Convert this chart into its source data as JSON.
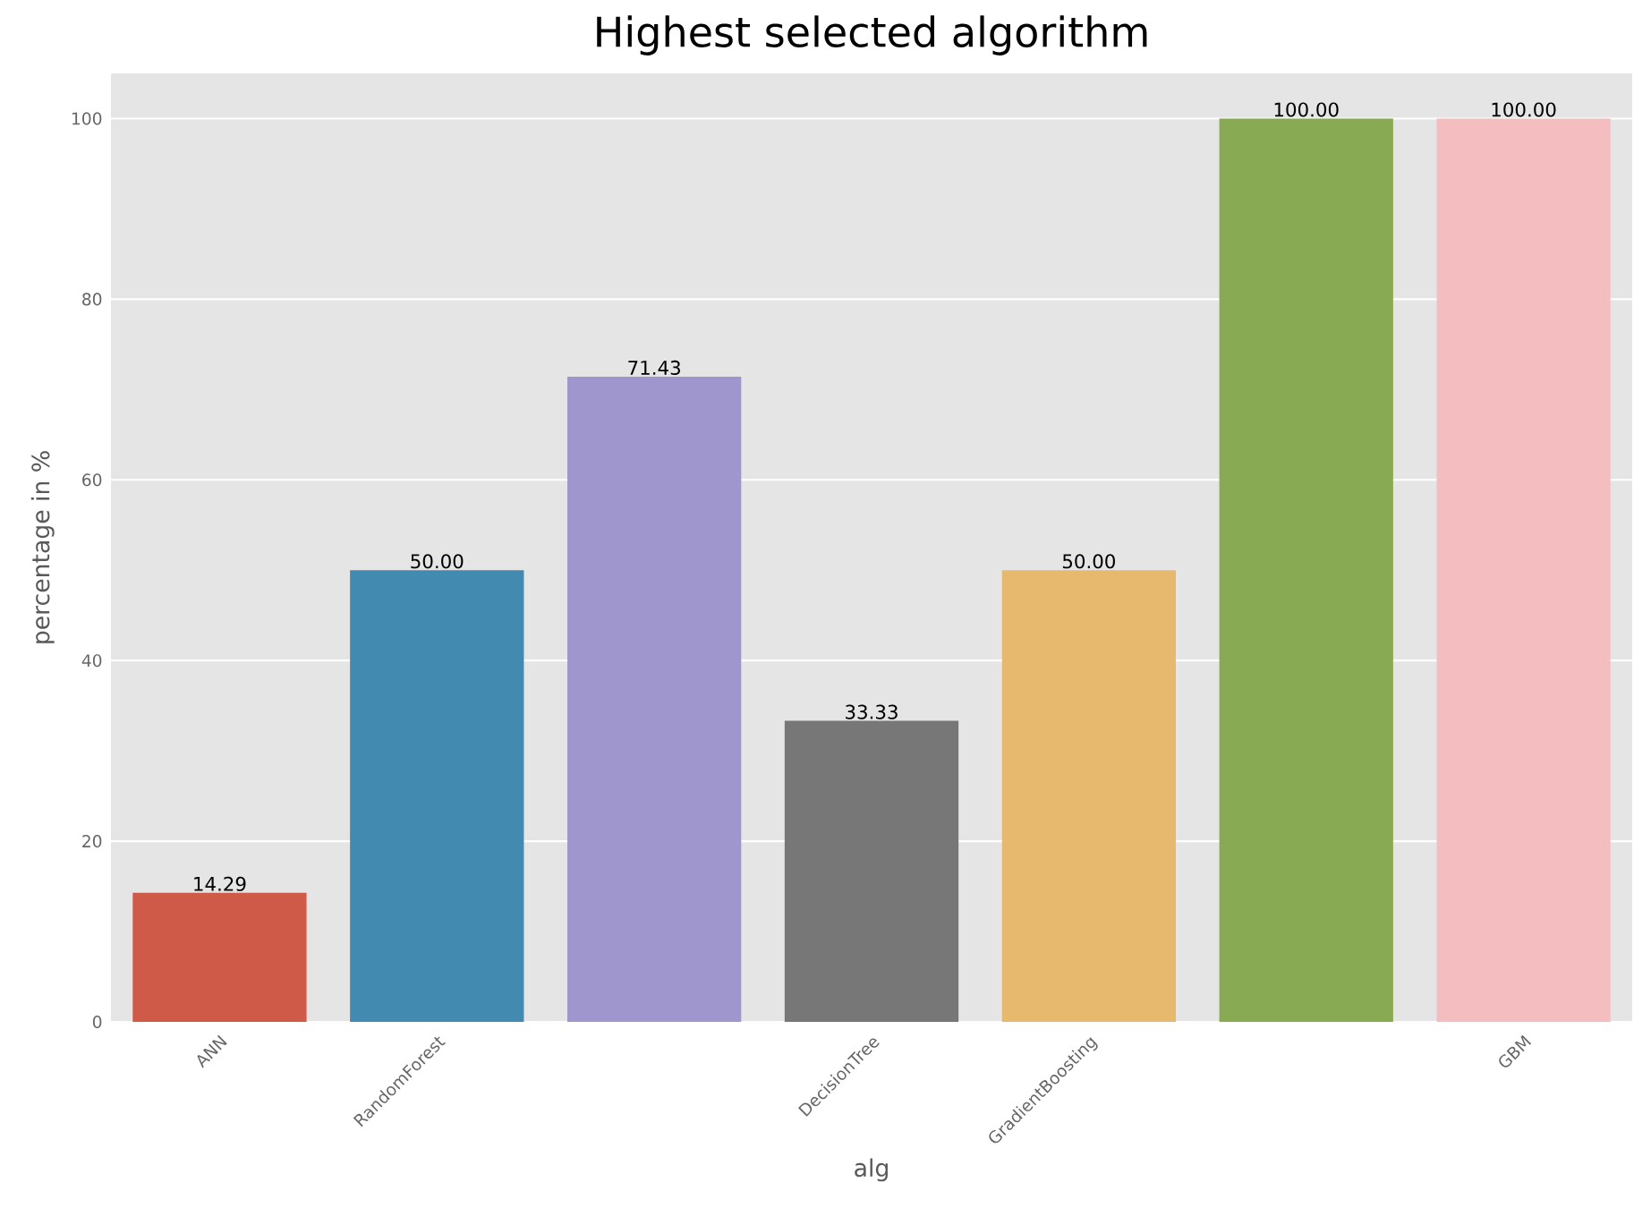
{
  "chart_data": {
    "type": "bar",
    "title": "Highest selected algorithm",
    "xlabel": "alg",
    "ylabel": "percentage in %",
    "categories": [
      "ANN",
      "RandomForest",
      null,
      "DecisionTree",
      "GradientBoosting",
      null,
      "GBM"
    ],
    "values": [
      14.29,
      50.0,
      71.43,
      33.33,
      50.0,
      100.0,
      100.0
    ],
    "value_labels": [
      "14.29",
      "50.00",
      "71.43",
      "33.33",
      "50.00",
      "100.00",
      "100.00"
    ],
    "colors": [
      "#d05a48",
      "#428ab0",
      "#9e96cc",
      "#777777",
      "#e6b96f",
      "#88aa52",
      "#f4bdc0"
    ],
    "ylim": [
      0,
      105
    ],
    "yticks": [
      0,
      20,
      40,
      60,
      80,
      100
    ],
    "grid": "y"
  }
}
